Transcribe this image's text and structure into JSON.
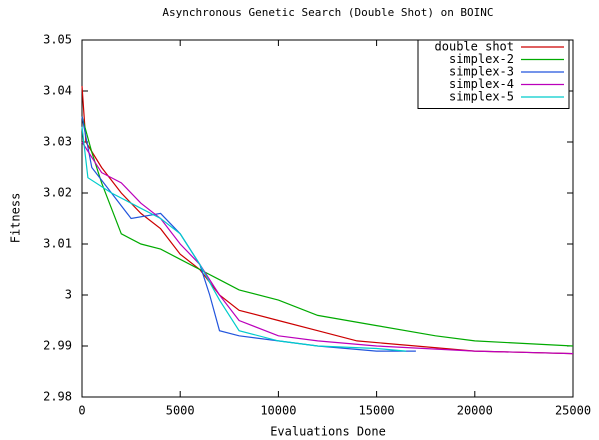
{
  "chart_data": {
    "type": "line",
    "title": "Asynchronous Genetic Search (Double Shot) on BOINC",
    "x_label": "Evaluations Done",
    "y_label": "Fitness",
    "xlim": [
      0,
      25000
    ],
    "xticks": [
      0,
      5000,
      10000,
      15000,
      20000,
      25000
    ],
    "ylim": [
      2.98,
      3.05
    ],
    "yticks": [
      2.98,
      2.99,
      3,
      3.01,
      3.02,
      3.03,
      3.04,
      3.05
    ],
    "legend": "top-right",
    "series": [
      {
        "name": "double shot",
        "color": "#cc0000",
        "x": [
          0,
          200,
          1000,
          2000,
          3000,
          4000,
          5000,
          6000,
          7000,
          8000,
          10000,
          12000,
          14000,
          17000,
          20000,
          25000
        ],
        "values": [
          3.041,
          3.03,
          3.025,
          3.02,
          3.016,
          3.013,
          3.008,
          3.005,
          3.0,
          2.997,
          2.995,
          2.993,
          2.991,
          2.99,
          2.989,
          2.9885
        ]
      },
      {
        "name": "simplex-2",
        "color": "#00aa00",
        "x": [
          0,
          500,
          1000,
          2000,
          3000,
          4000,
          5000,
          6000,
          7000,
          8000,
          10000,
          12000,
          15000,
          18000,
          20000,
          25000
        ],
        "values": [
          3.035,
          3.028,
          3.022,
          3.012,
          3.01,
          3.009,
          3.007,
          3.005,
          3.003,
          3.001,
          2.999,
          2.996,
          2.994,
          2.992,
          2.991,
          2.99
        ]
      },
      {
        "name": "simplex-3",
        "color": "#2255dd",
        "x": [
          0,
          500,
          1500,
          2500,
          4000,
          5000,
          6000,
          6500,
          7000,
          8000,
          10000,
          12000,
          15000,
          17000
        ],
        "values": [
          3.035,
          3.025,
          3.02,
          3.015,
          3.016,
          3.012,
          3.006,
          3.0,
          2.993,
          2.992,
          2.991,
          2.99,
          2.989,
          2.989
        ]
      },
      {
        "name": "simplex-4",
        "color": "#bb00bb",
        "x": [
          0,
          500,
          1000,
          2000,
          3000,
          4000,
          5000,
          6000,
          7000,
          8000,
          10000,
          12000,
          15000,
          20000,
          25000
        ],
        "values": [
          3.03,
          3.027,
          3.024,
          3.022,
          3.018,
          3.015,
          3.01,
          3.006,
          3.0,
          2.995,
          2.992,
          2.991,
          2.99,
          2.989,
          2.9885
        ]
      },
      {
        "name": "simplex-5",
        "color": "#00cccc",
        "x": [
          0,
          300,
          1500,
          3000,
          4000,
          5000,
          6000,
          7000,
          8000,
          10000,
          12000,
          15000,
          16500
        ],
        "values": [
          3.033,
          3.023,
          3.02,
          3.017,
          3.015,
          3.012,
          3.006,
          2.999,
          2.993,
          2.991,
          2.99,
          2.9895,
          2.989
        ]
      }
    ]
  }
}
